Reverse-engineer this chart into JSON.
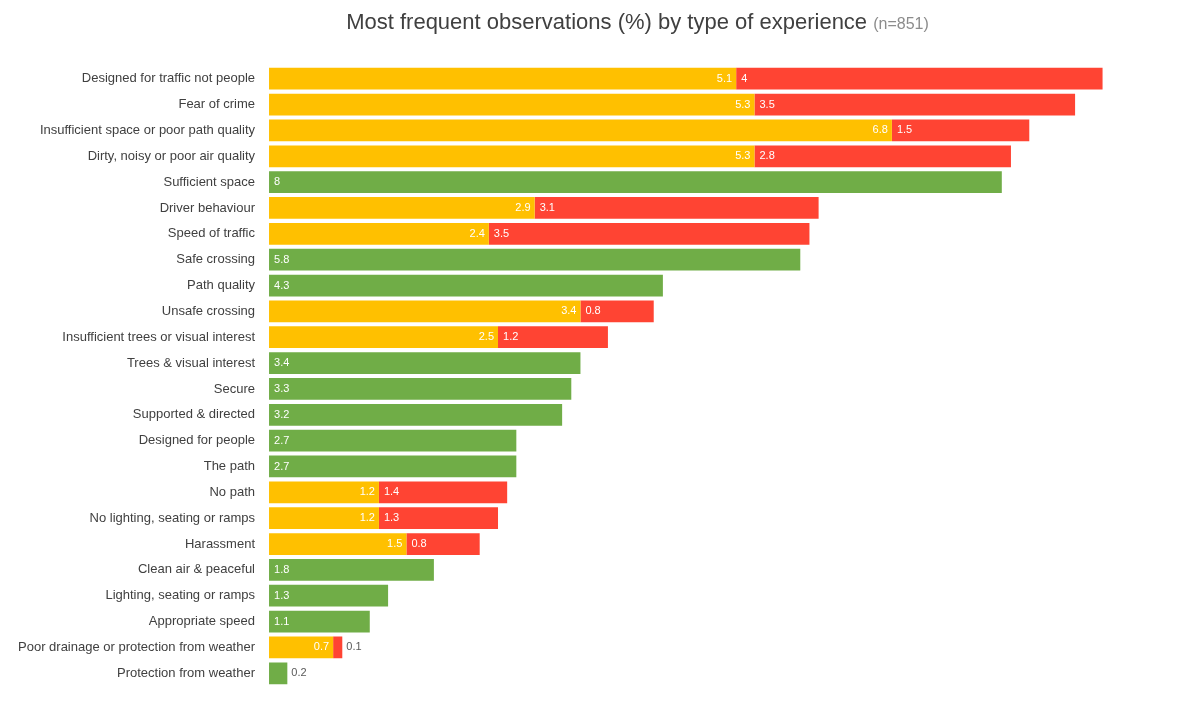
{
  "chart_data": {
    "type": "bar",
    "orientation": "horizontal",
    "stacked": true,
    "title": "Most frequent observations (%) by type of experience",
    "subtitle": "(n=851)",
    "categories": [
      "Designed for traffic not people",
      "Fear of crime",
      "Insufficient space or poor path quality",
      "Dirty, noisy or poor air quality",
      "Sufficient space",
      "Driver behaviour",
      "Speed of traffic",
      "Safe crossing",
      "Path quality",
      "Unsafe crossing",
      "Insufficient trees or visual interest",
      "Trees & visual interest",
      "Secure",
      "Supported & directed",
      "Designed for people",
      "The path",
      "No path",
      "No lighting, seating or ramps",
      "Harassment",
      "Clean air & peaceful",
      "Lighting, seating or ramps",
      "Appropriate speed",
      "Poor drainage or protection from weather",
      "Protection from weather"
    ],
    "series": [
      {
        "color": "#ffc000",
        "values": [
          5.1,
          5.3,
          6.8,
          5.3,
          null,
          2.9,
          2.4,
          null,
          null,
          3.4,
          2.5,
          null,
          null,
          null,
          null,
          null,
          1.2,
          1.2,
          1.5,
          null,
          null,
          null,
          0.7,
          null
        ]
      },
      {
        "color": "#ff4433",
        "values": [
          4,
          3.5,
          1.5,
          2.8,
          null,
          3.1,
          3.5,
          null,
          null,
          0.8,
          1.2,
          null,
          null,
          null,
          null,
          null,
          1.4,
          1.3,
          0.8,
          null,
          null,
          null,
          0.1,
          null
        ]
      },
      {
        "color": "#70ad47",
        "values": [
          null,
          null,
          null,
          null,
          8,
          null,
          null,
          5.8,
          4.3,
          null,
          null,
          3.4,
          3.3,
          3.2,
          2.7,
          2.7,
          null,
          null,
          null,
          1.8,
          1.3,
          1.1,
          null,
          0.2
        ]
      }
    ],
    "data_labels": true,
    "tick_labels": "y",
    "grid": false,
    "legend": false
  }
}
